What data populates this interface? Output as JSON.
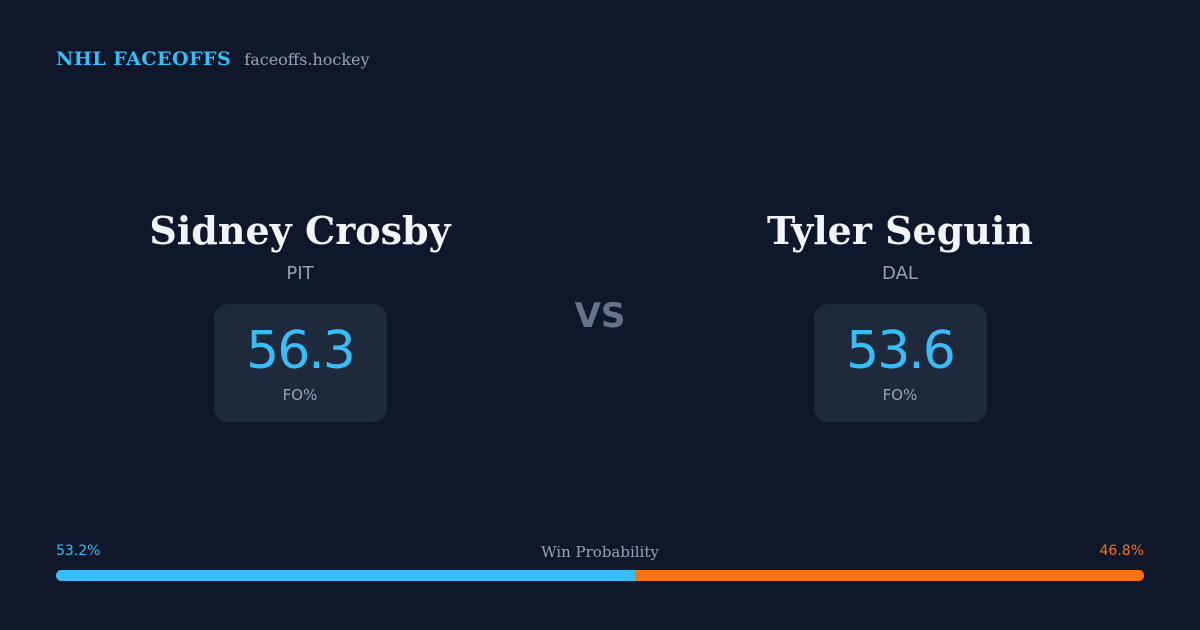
{
  "header": {
    "brand": "NHL FACEOFFS",
    "site": "faceoffs.hockey"
  },
  "matchup": {
    "left": {
      "name": "Sidney Crosby",
      "team": "PIT",
      "stat_value": "56.3",
      "stat_label": "FO%"
    },
    "vs_label": "VS",
    "right": {
      "name": "Tyler Seguin",
      "team": "DAL",
      "stat_value": "53.6",
      "stat_label": "FO%"
    }
  },
  "win_probability": {
    "title": "Win Probability",
    "left_text": "53.2%",
    "right_text": "46.8%",
    "left_value": 53.2,
    "right_value": 46.8
  },
  "colors": {
    "background": "#0f172a",
    "accent_left": "#38bdf8",
    "accent_right": "#f97316",
    "card": "#1e293b"
  }
}
